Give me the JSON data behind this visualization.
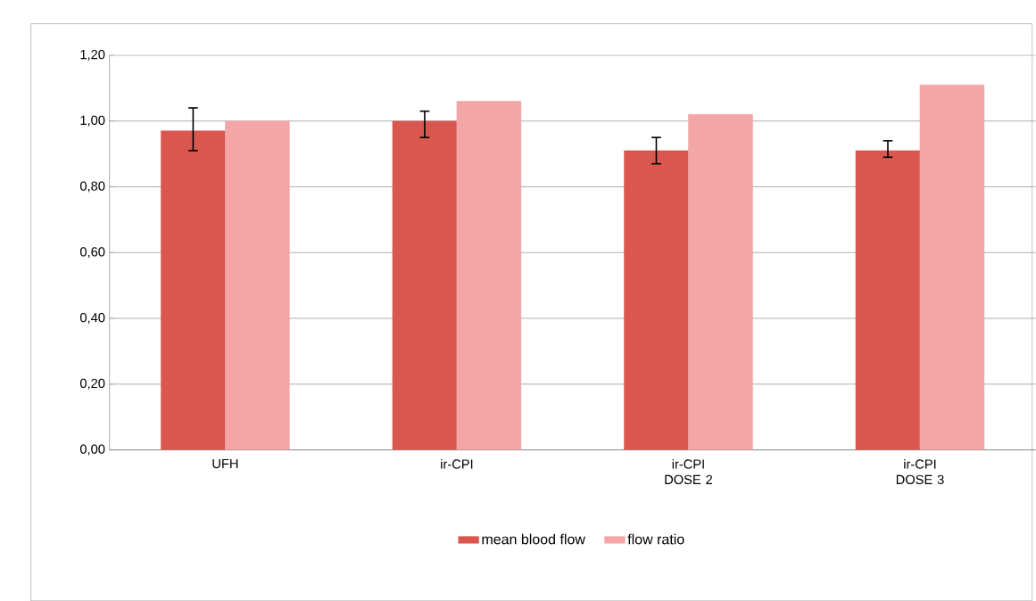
{
  "chart_data": {
    "type": "bar",
    "categories": [
      "UFH",
      "ir-CPI",
      "ir-CPI DOSE 2",
      "ir-CPI DOSE 3"
    ],
    "series": [
      {
        "name": "mean blood flow",
        "color": "#d9574f",
        "values": [
          0.97,
          1.0,
          0.91,
          0.91
        ],
        "errors": [
          [
            0.91,
            1.04
          ],
          [
            0.95,
            1.03
          ],
          [
            0.87,
            0.95
          ],
          [
            0.89,
            0.94
          ]
        ]
      },
      {
        "name": "flow ratio",
        "color": "#f4a6a6",
        "values": [
          1.0,
          1.06,
          1.02,
          1.11
        ]
      }
    ],
    "ylim": [
      0,
      1.2
    ],
    "yticks": [
      {
        "value": 0,
        "label": "0,00"
      },
      {
        "value": 0.2,
        "label": "0,20"
      },
      {
        "value": 0.4,
        "label": "0,40"
      },
      {
        "value": 0.6,
        "label": "0,60"
      },
      {
        "value": 0.8,
        "label": "0,80"
      },
      {
        "value": 1.0,
        "label": "1,00"
      },
      {
        "value": 1.2,
        "label": "1,20"
      }
    ],
    "grid": "y",
    "legend": "bottom"
  }
}
